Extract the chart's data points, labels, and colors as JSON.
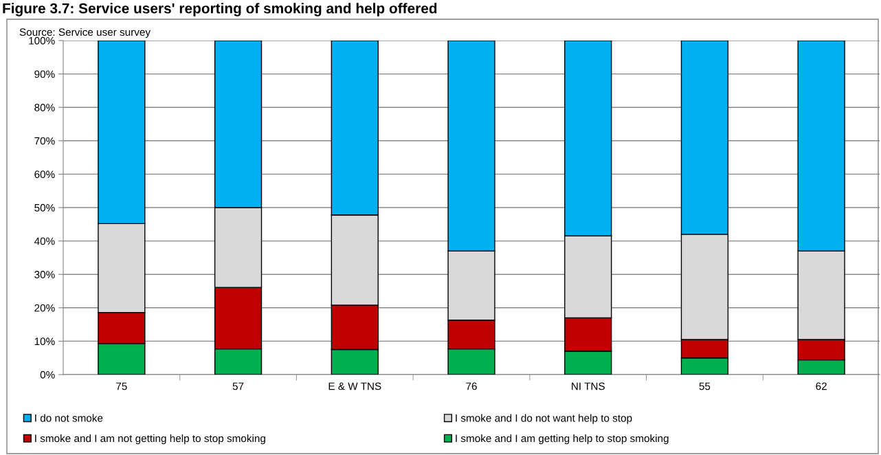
{
  "chart_data": {
    "type": "bar",
    "stacked": true,
    "title": "Figure 3.7: Service users' reporting of smoking and help offered",
    "annotations": [
      "Source: Service user survey"
    ],
    "categories": [
      "75",
      "57",
      "E & W TNS",
      "76",
      "NI TNS",
      "55",
      "62"
    ],
    "series": [
      {
        "name": "I smoke and I am getting help to stop smoking",
        "color": "#00b050",
        "values": [
          9.3,
          7.7,
          7.5,
          7.7,
          7.0,
          5.0,
          4.4
        ]
      },
      {
        "name": "I smoke and I am not getting help to stop smoking",
        "color": "#c00000",
        "values": [
          9.3,
          18.4,
          13.3,
          8.6,
          10.0,
          5.5,
          6.1
        ]
      },
      {
        "name": "I smoke and I do not want help to stop",
        "color": "#d9d9d9",
        "values": [
          26.6,
          23.9,
          27.0,
          20.7,
          24.5,
          31.5,
          26.5
        ]
      },
      {
        "name": "I do not smoke",
        "color": "#00b0f0",
        "values": [
          54.8,
          50.0,
          52.2,
          63.0,
          58.5,
          58.0,
          63.0
        ]
      }
    ],
    "ylim": [
      0,
      100
    ],
    "yticks": [
      {
        "value": 0,
        "label": "0%"
      },
      {
        "value": 10,
        "label": "10%"
      },
      {
        "value": 20,
        "label": "20%"
      },
      {
        "value": 30,
        "label": "30%"
      },
      {
        "value": 40,
        "label": "40%"
      },
      {
        "value": 50,
        "label": "50%"
      },
      {
        "value": 60,
        "label": "60%"
      },
      {
        "value": 70,
        "label": "70%"
      },
      {
        "value": 80,
        "label": "80%"
      },
      {
        "value": 90,
        "label": "90%"
      },
      {
        "value": 100,
        "label": "100%"
      }
    ],
    "grid": "y",
    "legend": "bottom"
  }
}
